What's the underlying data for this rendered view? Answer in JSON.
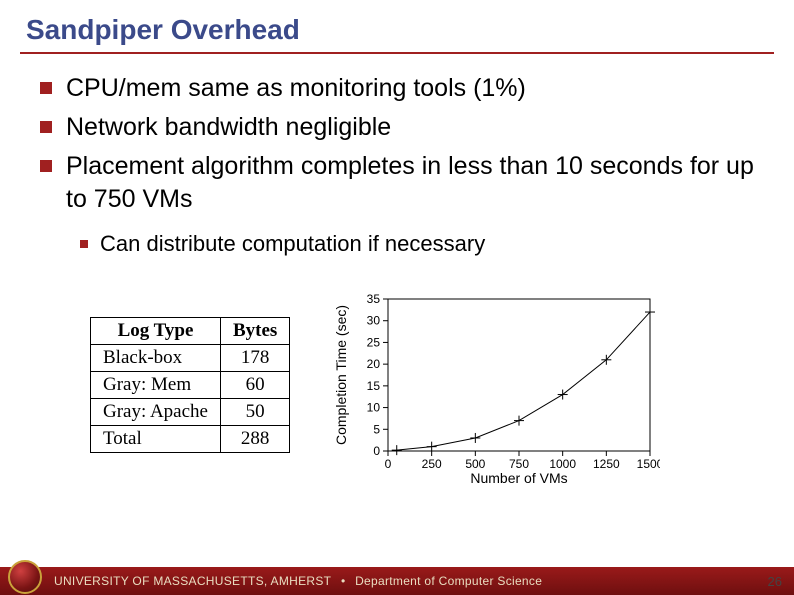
{
  "title": "Sandpiper Overhead",
  "title_color": "#3b4a8a",
  "rule_color": "#a02020",
  "bullets": [
    "CPU/mem same as monitoring tools (1%)",
    "Network bandwidth negligible",
    "Placement algorithm completes in less than 10 seconds for up to 750 VMs"
  ],
  "sub_bullet": "Can distribute computation if necessary",
  "bullet_marker_color": "#a02020",
  "table": {
    "columns": [
      "Log Type",
      "Bytes"
    ],
    "rows": [
      [
        "Black-box",
        "178"
      ],
      [
        "Gray: Mem",
        "60"
      ],
      [
        "Gray: Apache",
        "50"
      ],
      [
        "Total",
        "288"
      ]
    ],
    "header_fontweight": "bold",
    "cell_fontsize": 19,
    "border_color": "#000000",
    "font_family": "Times New Roman"
  },
  "chart": {
    "type": "line",
    "xlabel": "Number of VMs",
    "ylabel": "Completion Time (sec)",
    "xlim": [
      0,
      1500
    ],
    "ylim": [
      0,
      35
    ],
    "xticks": [
      0,
      250,
      500,
      750,
      1000,
      1250,
      1500
    ],
    "yticks": [
      0,
      5,
      10,
      15,
      20,
      25,
      30,
      35
    ],
    "points_x": [
      50,
      250,
      500,
      750,
      1000,
      1250,
      1500
    ],
    "points_y": [
      0.2,
      1,
      3,
      7,
      13,
      21,
      32
    ],
    "line_color": "#000000",
    "marker": "plus",
    "marker_size": 5,
    "tick_fontsize": 12,
    "label_fontsize": 14,
    "background_color": "#ffffff"
  },
  "footer": {
    "university": "UNIVERSITY OF MASSACHUSETTS, AMHERST",
    "separator": "•",
    "department": "Department of Computer Science",
    "bg_gradient_top": "#9a1a1a",
    "bg_gradient_bottom": "#6e0f0f",
    "text_color": "#e9ddc0"
  },
  "page_number": "26"
}
